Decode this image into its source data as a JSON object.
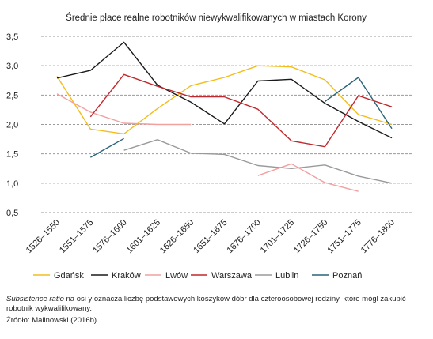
{
  "chart_data": {
    "type": "line",
    "title": "Średnie płace realne robotników niewykwalifikowanych w miastach Korony",
    "xlabel": "",
    "ylabel": "",
    "ylim": [
      0.5,
      3.5
    ],
    "y_ticks": [
      "3,5",
      "3,0",
      "2,5",
      "2,0",
      "1,5",
      "1,0",
      "0,5"
    ],
    "y_tick_values": [
      3.5,
      3.0,
      2.5,
      2.0,
      1.5,
      1.0,
      0.5
    ],
    "grid": true,
    "legend_position": "bottom",
    "categories": [
      "1526–1550",
      "1551–1575",
      "1576–1600",
      "1601–1625",
      "1626–1650",
      "1651–1675",
      "1676–1700",
      "1701–1725",
      "1726–1750",
      "1751–1775",
      "1776–1800"
    ],
    "series": [
      {
        "name": "Gdańsk",
        "color": "#f2bd1d",
        "values": [
          2.82,
          1.92,
          1.84,
          2.27,
          2.66,
          2.8,
          3.0,
          2.98,
          2.76,
          2.17,
          2.0
        ]
      },
      {
        "name": "Kraków",
        "color": "#1a1a1a",
        "values": [
          2.79,
          2.92,
          3.4,
          2.67,
          2.38,
          2.01,
          2.74,
          2.77,
          2.36,
          2.05,
          1.77
        ]
      },
      {
        "name": "Lwów",
        "color": "#f2a0a0",
        "values": [
          2.52,
          2.21,
          2.02,
          2.0,
          2.0,
          null,
          1.13,
          1.33,
          1.01,
          0.86,
          null
        ]
      },
      {
        "name": "Warszawa",
        "color": "#c0282d",
        "values": [
          null,
          2.13,
          2.85,
          2.65,
          2.47,
          2.47,
          2.26,
          1.72,
          1.62,
          2.49,
          2.3
        ]
      },
      {
        "name": "Lublin",
        "color": "#9a9a9a",
        "values": [
          null,
          null,
          1.56,
          1.74,
          1.51,
          1.49,
          1.3,
          1.25,
          1.31,
          1.12,
          1.0
        ]
      },
      {
        "name": "Poznań",
        "color": "#2a6478",
        "values": [
          null,
          1.44,
          1.76,
          null,
          null,
          null,
          null,
          null,
          2.39,
          2.8,
          1.93
        ]
      }
    ]
  },
  "note": {
    "italic": "Subsistence ratio",
    "text": " na osi y oznacza liczbę podstawowych koszyków dóbr dla czteroosobowej rodziny, które mógł zakupić robotnik wykwalifikowany."
  },
  "source": "Źródło: Malinowski (2016b)."
}
